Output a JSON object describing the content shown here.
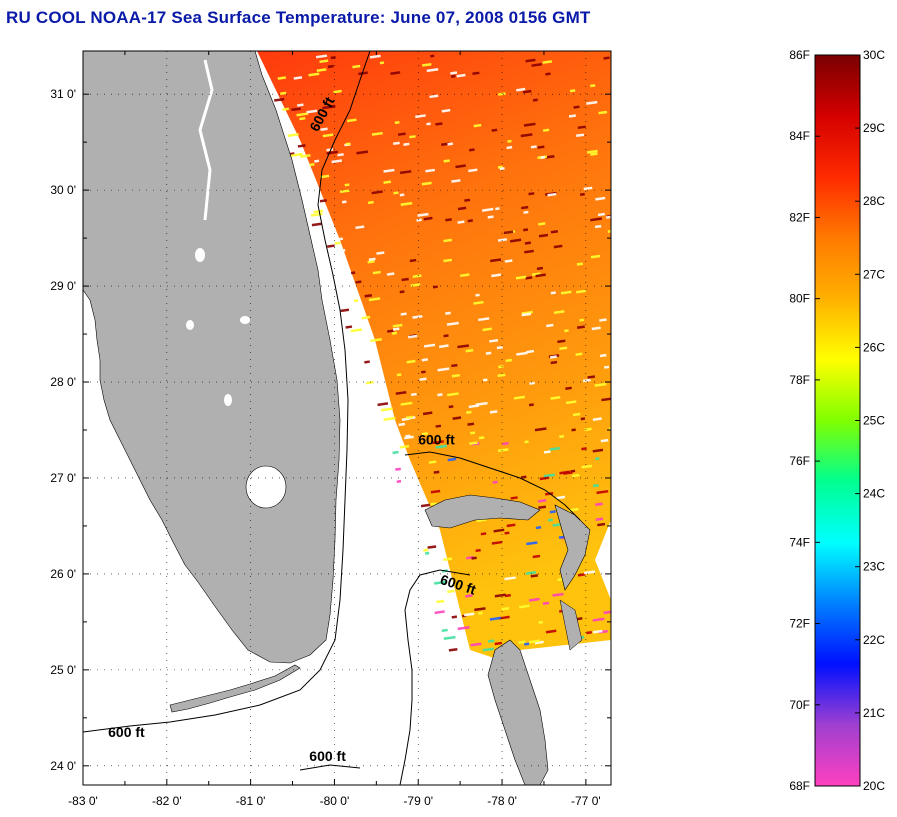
{
  "title": "RU COOL  NOAA-17  Sea Surface Temperature:  June 07, 2008 0156 GMT",
  "map": {
    "lon_range": [
      -83.0,
      -76.7
    ],
    "lat_range": [
      23.8,
      31.45
    ],
    "lon_ticks": [
      {
        "value": -83,
        "label": "-83 0'"
      },
      {
        "value": -82,
        "label": "-82 0'"
      },
      {
        "value": -81,
        "label": "-81 0'"
      },
      {
        "value": -80,
        "label": "-80 0'"
      },
      {
        "value": -79,
        "label": "-79 0'"
      },
      {
        "value": -78,
        "label": "-78 0'"
      },
      {
        "value": -77,
        "label": "-77 0'"
      }
    ],
    "lat_ticks": [
      {
        "value": 31,
        "label": "31 0'"
      },
      {
        "value": 30,
        "label": "30 0'"
      },
      {
        "value": 29,
        "label": "29 0'"
      },
      {
        "value": 28,
        "label": "28 0'"
      },
      {
        "value": 27,
        "label": "27 0'"
      },
      {
        "value": 26,
        "label": "26 0'"
      },
      {
        "value": 25,
        "label": "25 0'"
      },
      {
        "value": 24,
        "label": "24 0'"
      }
    ],
    "contour_labels": [
      {
        "text": "600 ft",
        "lon": -80.2,
        "lat": 30.6
      },
      {
        "text": "600 ft",
        "lon": -79.0,
        "lat": 27.35
      },
      {
        "text": "600 ft",
        "lon": -78.75,
        "lat": 25.9
      },
      {
        "text": "600 ft",
        "lon": -82.7,
        "lat": 24.3
      },
      {
        "text": "600 ft",
        "lon": -80.3,
        "lat": 24.05
      }
    ],
    "land_color": "#b0b0b0",
    "grid": "dotted"
  },
  "colorbar": {
    "f_labels": [
      "86F",
      "84F",
      "82F",
      "80F",
      "78F",
      "76F",
      "74F",
      "72F",
      "70F",
      "68F"
    ],
    "c_labels": [
      "30C",
      "29C",
      "28C",
      "27C",
      "26C",
      "25C",
      "24C",
      "23C",
      "22C",
      "21C",
      "20C"
    ],
    "colors": [
      "#7a0000",
      "#d40000",
      "#ff2a00",
      "#ff7a00",
      "#ffb000",
      "#ffff00",
      "#80ff00",
      "#00ff90",
      "#00ffff",
      "#0080ff",
      "#0010ff",
      "#a040d0",
      "#ff40c0"
    ]
  }
}
